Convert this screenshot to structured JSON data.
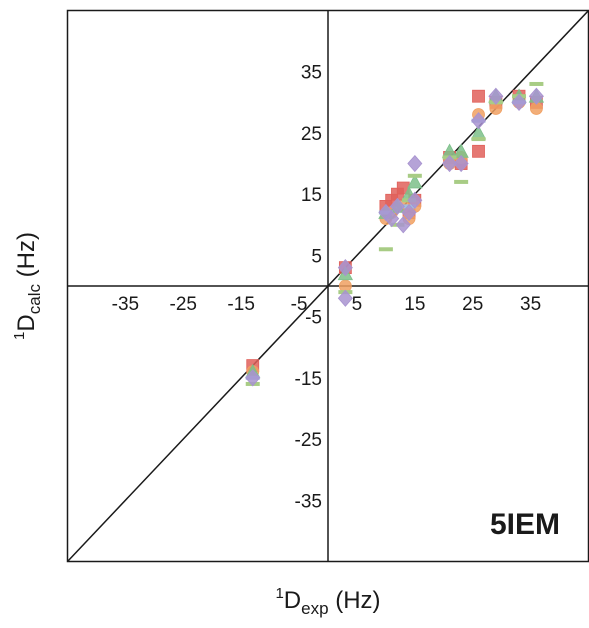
{
  "chart_data": {
    "type": "scatter",
    "xlabel": {
      "prefix": "1",
      "main": "D",
      "sub": "exp",
      "suffix": " (Hz)"
    },
    "ylabel": {
      "prefix": "1",
      "main": "D",
      "sub": "calc",
      "suffix": " (Hz)"
    },
    "xlim": [
      -45,
      45
    ],
    "ylim": [
      -45,
      45
    ],
    "x_ticks": [
      -35,
      -25,
      -15,
      -5,
      5,
      15,
      25,
      35
    ],
    "y_ticks": [
      35,
      25,
      15,
      5,
      -5,
      -15,
      -25,
      -35
    ],
    "x_tick_labels": [
      "-35",
      "-25",
      "-15",
      "-5",
      "5",
      "15",
      "25",
      "35"
    ],
    "y_tick_labels": [
      "35",
      "25",
      "15",
      "5",
      "-5",
      "-15",
      "-25",
      "-35"
    ],
    "diagonal": true,
    "grid": false,
    "annotation": "5IEM",
    "series": [
      {
        "marker": "square",
        "color": "#e0605a",
        "points": [
          [
            -13,
            -13
          ],
          [
            3,
            3
          ],
          [
            10,
            13
          ],
          [
            11,
            14
          ],
          [
            12,
            15
          ],
          [
            13,
            16
          ],
          [
            14,
            12
          ],
          [
            15,
            14
          ],
          [
            21,
            21
          ],
          [
            23,
            20
          ],
          [
            26,
            22
          ],
          [
            26,
            31
          ],
          [
            29,
            30
          ],
          [
            33,
            31
          ],
          [
            36,
            30
          ]
        ]
      },
      {
        "marker": "circle",
        "color": "#f0a062",
        "points": [
          [
            -13,
            -14
          ],
          [
            3,
            0
          ],
          [
            10,
            11
          ],
          [
            11,
            12
          ],
          [
            13,
            13
          ],
          [
            14,
            11
          ],
          [
            15,
            13
          ],
          [
            21,
            20
          ],
          [
            23,
            21
          ],
          [
            26,
            28
          ],
          [
            29,
            29
          ],
          [
            33,
            30
          ],
          [
            36,
            29
          ]
        ]
      },
      {
        "marker": "triangle",
        "color": "#7dc08a",
        "points": [
          [
            -13,
            -14
          ],
          [
            3,
            2
          ],
          [
            10,
            12
          ],
          [
            12,
            13
          ],
          [
            14,
            15
          ],
          [
            15,
            17
          ],
          [
            21,
            22
          ],
          [
            23,
            22
          ],
          [
            26,
            25
          ],
          [
            29,
            31
          ],
          [
            33,
            31
          ],
          [
            36,
            31
          ]
        ]
      },
      {
        "marker": "dash",
        "color": "#a8cc85",
        "points": [
          [
            -13,
            -16
          ],
          [
            3,
            -1
          ],
          [
            10,
            6
          ],
          [
            12,
            10
          ],
          [
            14,
            14
          ],
          [
            15,
            18
          ],
          [
            21,
            21
          ],
          [
            23,
            17
          ],
          [
            26,
            24
          ],
          [
            29,
            30
          ],
          [
            33,
            31
          ],
          [
            36,
            33
          ]
        ]
      },
      {
        "marker": "dash",
        "color": "#9fc4e0",
        "points": [
          [
            -13,
            -15
          ],
          [
            10,
            12
          ],
          [
            14,
            13
          ],
          [
            26,
            27
          ],
          [
            33,
            30
          ]
        ]
      },
      {
        "marker": "diamond",
        "color": "#a893d0",
        "points": [
          [
            -13,
            -15
          ],
          [
            3,
            -2
          ],
          [
            3,
            3
          ],
          [
            10,
            12
          ],
          [
            11,
            11
          ],
          [
            12,
            13
          ],
          [
            13,
            10
          ],
          [
            14,
            12
          ],
          [
            15,
            14
          ],
          [
            15,
            20
          ],
          [
            21,
            20
          ],
          [
            23,
            20
          ],
          [
            26,
            27
          ],
          [
            29,
            31
          ],
          [
            33,
            30
          ],
          [
            36,
            31
          ]
        ]
      }
    ]
  }
}
